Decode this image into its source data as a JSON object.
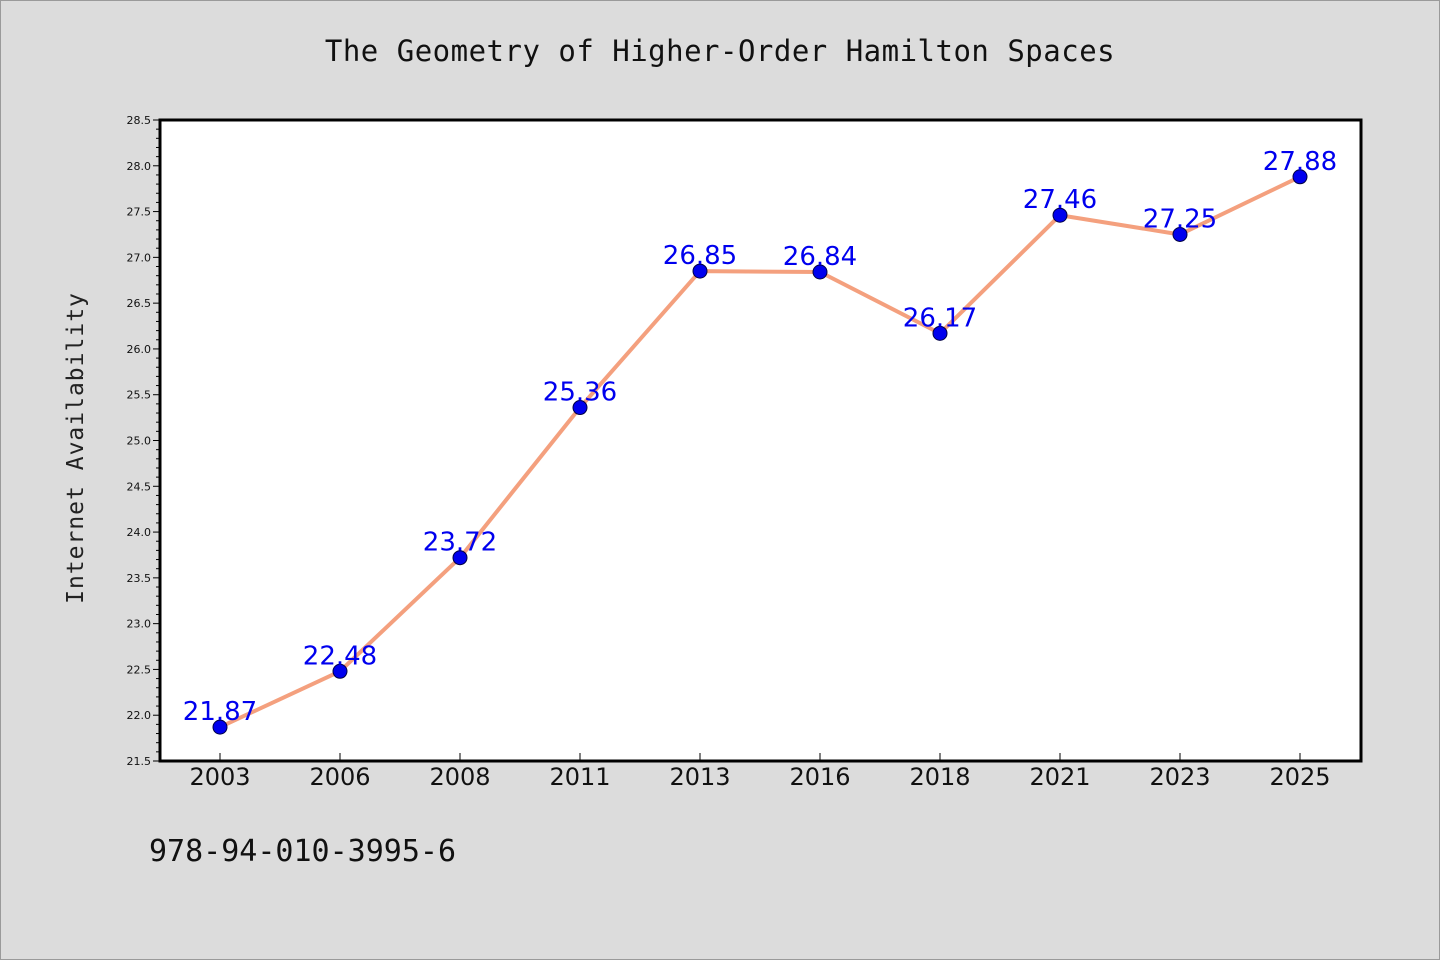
{
  "chart_data": {
    "type": "line",
    "title": "The Geometry of Higher-Order Hamilton Spaces",
    "xlabel": "",
    "ylabel": "Internet Availability",
    "categories": [
      "2003",
      "2006",
      "2008",
      "2011",
      "2013",
      "2016",
      "2018",
      "2021",
      "2023",
      "2025"
    ],
    "series": [
      {
        "values": [
          21.87,
          22.48,
          23.72,
          25.36,
          26.85,
          26.84,
          26.17,
          27.46,
          27.25,
          27.88
        ],
        "data_labels": [
          "21.87",
          "22.48",
          "23.72",
          "25.36",
          "26.85",
          "26.84",
          "26.17",
          "27.46",
          "27.25",
          "27.88"
        ],
        "line_color": "#f4a07e",
        "marker_color": "#0000ee"
      }
    ],
    "ylim": [
      21.5,
      28.5
    ],
    "yticks": [
      "21.5",
      "22.0",
      "22.5",
      "23.0",
      "23.5",
      "24.0",
      "24.5",
      "25.0",
      "25.5",
      "26.0",
      "26.5",
      "27.0",
      "27.5",
      "28.0",
      "28.5"
    ],
    "grid": false,
    "legend": "none"
  },
  "footer": {
    "isbn": "978-94-010-3995-6"
  },
  "colors": {
    "background": "#dcdcdc",
    "plot_background": "#ffffff",
    "line": "#f4a07e",
    "marker": "#0000ee",
    "data_label": "#0000ee"
  }
}
